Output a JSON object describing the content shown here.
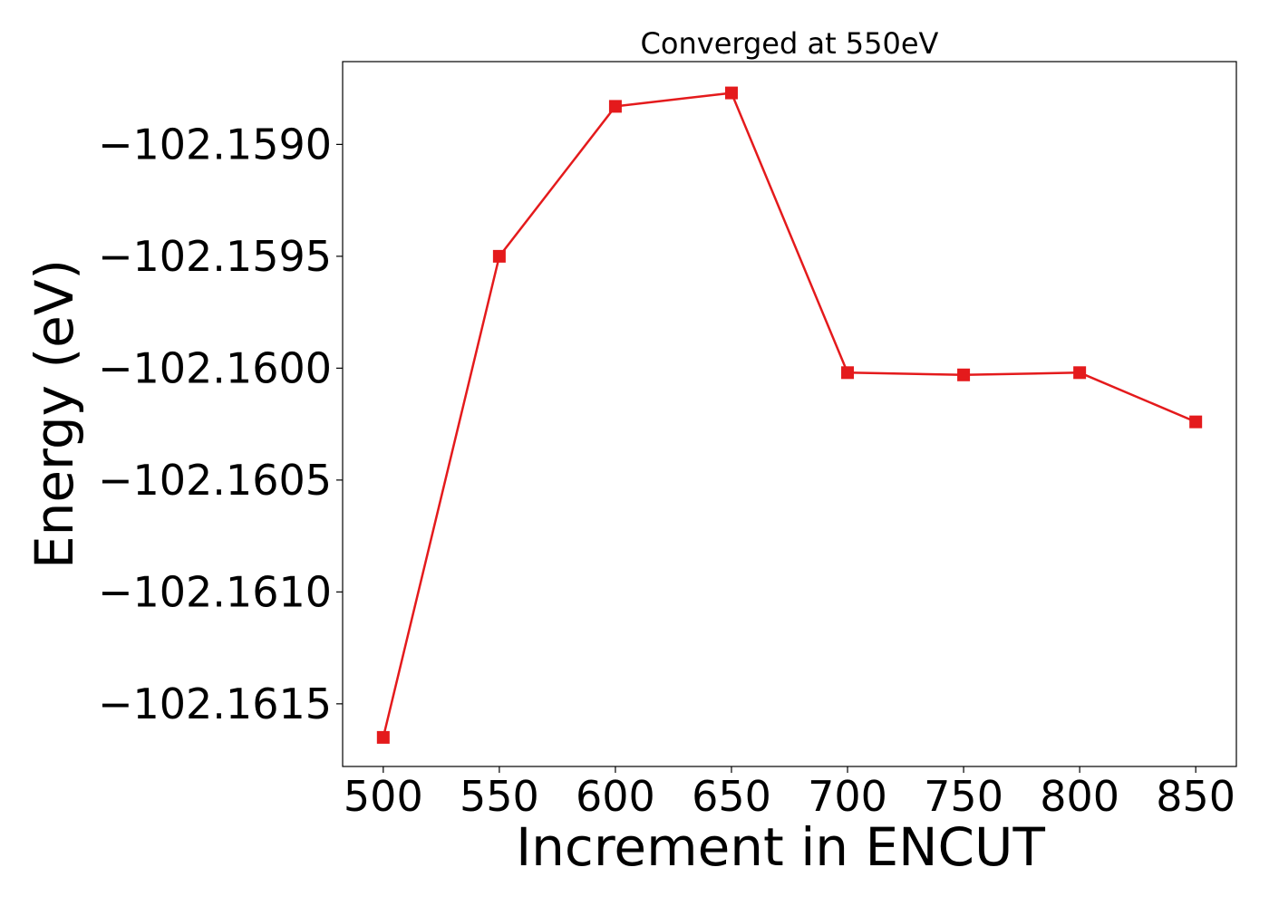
{
  "chart_data": {
    "type": "line",
    "title": "Converged at 550eV",
    "xlabel": "Increment in ENCUT",
    "ylabel": "Energy (eV)",
    "x": [
      500,
      550,
      600,
      650,
      700,
      750,
      800,
      850
    ],
    "series": [
      {
        "values": [
          -102.16165,
          -102.1595,
          -102.15883,
          -102.15877,
          -102.16002,
          -102.16003,
          -102.16002,
          -102.16024
        ],
        "color": "#e41a1c",
        "marker": "square"
      }
    ],
    "xticks": [
      500,
      550,
      600,
      650,
      700,
      750,
      800,
      850
    ],
    "xtick_labels": [
      "500",
      "550",
      "600",
      "650",
      "700",
      "750",
      "800",
      "850"
    ],
    "yticks": [
      -102.159,
      -102.1595,
      -102.16,
      -102.1605,
      -102.161,
      -102.1615
    ],
    "ytick_labels": [
      "−102.1590",
      "−102.1595",
      "−102.1600",
      "−102.1605",
      "−102.1610",
      "−102.1615"
    ],
    "xlim": [
      482.5,
      867.5
    ],
    "ylim": [
      -102.16178,
      -102.15863
    ],
    "grid": false,
    "legend": "none"
  }
}
